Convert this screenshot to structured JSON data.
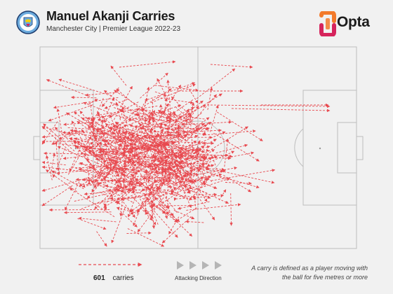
{
  "header": {
    "title": "Manuel Akanji Carries",
    "subtitle": "Manchester City | Premier League 2022-23",
    "club_badge_icon": "manchester-city-crest",
    "opta_logo_text": "Opta"
  },
  "pitch": {
    "line_color": "#bdbdbd",
    "background": "#f1f1f1",
    "carry_color": "#e84a50",
    "carries_drawn": 601
  },
  "footer": {
    "count_value": "601",
    "count_label": "carries",
    "direction_label": "Attacking Direction",
    "note": "A carry is defined as a player moving with the ball for five metres or more"
  },
  "colors": {
    "accent": "#e84a50",
    "opta_orange": "#f37a2b",
    "opta_pink": "#d6245c"
  }
}
